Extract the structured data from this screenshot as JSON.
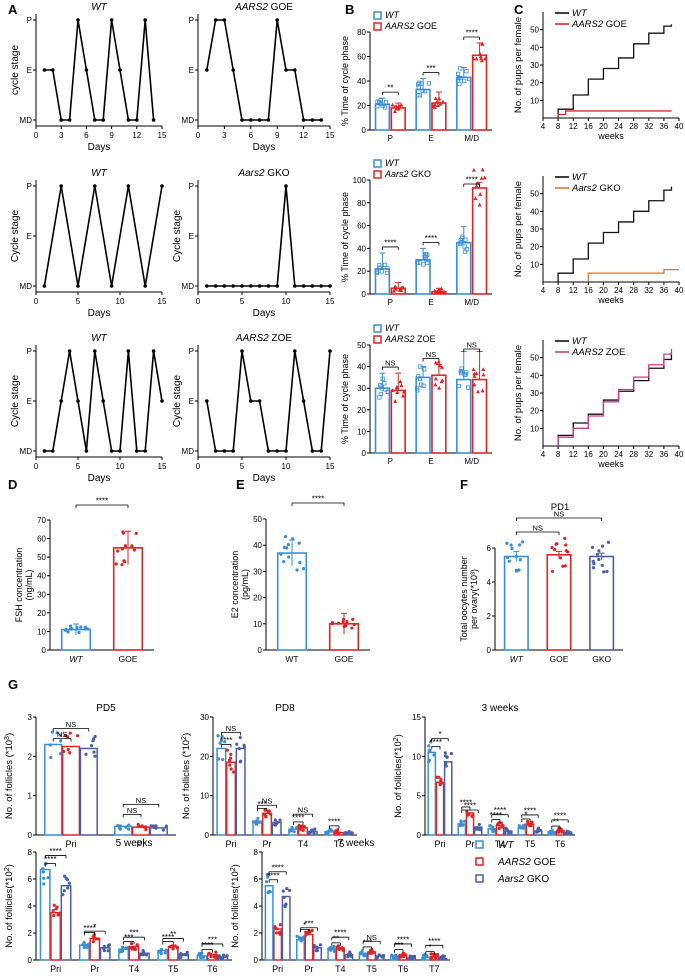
{
  "panels": {
    "A": "A",
    "B": "B",
    "C": "C",
    "D": "D",
    "E": "E",
    "F": "F",
    "G": "G"
  },
  "colors": {
    "wt": "#3a8fd6",
    "goe": "#e02424",
    "gko": "#4a5fa8",
    "zoe_line": "#d33a8c",
    "gko_line": "#e07a2e",
    "black": "#111111"
  },
  "chart_data": [
    {
      "id": "A1",
      "type": "line",
      "title": "WT",
      "title_italic": true,
      "ylabel": "cycle stage",
      "xlabel": "Days",
      "yticks": [
        "MD",
        "E",
        "P"
      ],
      "xticks": [
        0,
        3,
        6,
        9,
        12,
        15
      ],
      "xlim": [
        0,
        15
      ],
      "x": [
        1,
        2,
        3,
        4,
        5,
        6,
        7,
        8,
        9,
        10,
        11,
        12,
        13,
        14
      ],
      "y": [
        1,
        1,
        0,
        0,
        2,
        1,
        0,
        0,
        2,
        1,
        0,
        0,
        2,
        0
      ]
    },
    {
      "id": "A2",
      "type": "line",
      "title": "AARS2 GOE",
      "title_italic_part": "AARS2",
      "title_rest": " GOE",
      "ylabel": "",
      "xlabel": "Days",
      "yticks": [
        "MD",
        "E",
        "P"
      ],
      "xticks": [
        0,
        3,
        6,
        9,
        12,
        15
      ],
      "xlim": [
        0,
        15
      ],
      "x": [
        1,
        2,
        3,
        4,
        5,
        6,
        7,
        8,
        9,
        10,
        11,
        12,
        13,
        14
      ],
      "y": [
        1,
        2,
        2,
        1,
        0,
        0,
        0,
        0,
        2,
        1,
        1,
        0,
        0,
        0
      ]
    },
    {
      "id": "A3",
      "type": "line",
      "title": "WT",
      "title_italic": true,
      "ylabel": "Cycle stage",
      "xlabel": "Days",
      "yticks": [
        "MD",
        "E",
        "P"
      ],
      "xticks": [
        0,
        5,
        10,
        15
      ],
      "xlim": [
        0,
        15
      ],
      "x": [
        1,
        3,
        5,
        7,
        9,
        11,
        13,
        15
      ],
      "y": [
        0,
        2,
        0,
        2,
        0,
        2,
        0,
        2
      ]
    },
    {
      "id": "A4",
      "type": "line",
      "title": "Aars2 GKO",
      "title_italic_part": "Aars2",
      "title_rest": " GKO",
      "ylabel": "Cycle stage",
      "xlabel": "Days",
      "yticks": [
        "MD",
        "E",
        "P"
      ],
      "xticks": [
        0,
        5,
        10,
        15
      ],
      "xlim": [
        0,
        15
      ],
      "x": [
        1,
        2,
        3,
        4,
        5,
        6,
        7,
        8,
        9,
        10,
        11,
        12,
        13,
        14,
        15
      ],
      "y": [
        0,
        0,
        0,
        0,
        0,
        0,
        0,
        0,
        0,
        2,
        0,
        0,
        0,
        0,
        0
      ]
    },
    {
      "id": "A5",
      "type": "line",
      "title": "WT",
      "title_italic": true,
      "ylabel": "Cycle stage",
      "xlabel": "Days",
      "yticks": [
        "MD",
        "E",
        "P"
      ],
      "xticks": [
        0,
        5,
        10,
        15
      ],
      "xlim": [
        0,
        15
      ],
      "x": [
        1,
        2,
        3,
        4,
        5,
        6,
        7,
        8,
        9,
        10,
        11,
        12,
        13,
        14,
        15
      ],
      "y": [
        0,
        0,
        1,
        2,
        1,
        0,
        2,
        1,
        0,
        0,
        2,
        0,
        0,
        2,
        1
      ]
    },
    {
      "id": "A6",
      "type": "line",
      "title": "AARS2 ZOE",
      "title_italic_part": "AARS2",
      "title_rest": " ZOE",
      "ylabel": "Cycle stage",
      "xlabel": "Days",
      "yticks": [
        "MD",
        "E",
        "P"
      ],
      "xticks": [
        0,
        5,
        10,
        15
      ],
      "xlim": [
        0,
        15
      ],
      "x": [
        1,
        2,
        3,
        4,
        5,
        6,
        7,
        8,
        9,
        10,
        11,
        12,
        13,
        14,
        15
      ],
      "y": [
        1,
        0,
        0,
        0,
        2,
        1,
        1,
        0,
        0,
        0,
        2,
        1,
        0,
        0,
        2
      ]
    },
    {
      "id": "B1",
      "type": "bar",
      "ylabel": "% Time of cycle phase",
      "categories": [
        "P",
        "E",
        "M/D"
      ],
      "ylim": [
        0,
        80
      ],
      "yticks": [
        0,
        20,
        40,
        60,
        80
      ],
      "legend": [
        "WT",
        "AARS2 GOE"
      ],
      "legend_italic": [
        "WT",
        "AARS2"
      ],
      "series": [
        {
          "name": "WT",
          "values": [
            21,
            33,
            43
          ],
          "err": [
            5,
            9,
            8
          ]
        },
        {
          "name": "AARS2 GOE",
          "values": [
            18,
            22,
            61
          ],
          "err": [
            4,
            9,
            10
          ]
        }
      ],
      "sig": [
        "**",
        "***",
        "****"
      ]
    },
    {
      "id": "B2",
      "type": "bar",
      "ylabel": "% Time of cycle phase",
      "categories": [
        "P",
        "E",
        "M/D"
      ],
      "ylim": [
        0,
        100
      ],
      "yticks": [
        0,
        20,
        40,
        60,
        80,
        100
      ],
      "legend": [
        "WT",
        "Aars2 GKO"
      ],
      "legend_italic": [
        "WT",
        "Aars2"
      ],
      "series": [
        {
          "name": "WT",
          "values": [
            22,
            30,
            45
          ],
          "err": [
            14,
            10,
            14
          ]
        },
        {
          "name": "Aars2 GKO",
          "values": [
            5,
            2,
            93
          ],
          "err": [
            5,
            3,
            5
          ]
        }
      ],
      "sig": [
        "****",
        "****",
        "****"
      ]
    },
    {
      "id": "B3",
      "type": "bar",
      "ylabel": "% Time of cycle phase",
      "categories": [
        "P",
        "E",
        "M/D"
      ],
      "ylim": [
        0,
        50
      ],
      "yticks": [
        0,
        10,
        20,
        30,
        40,
        50
      ],
      "legend": [
        "WT",
        "AARS2 ZOE"
      ],
      "legend_italic": [
        "WT",
        "AARS2"
      ],
      "series": [
        {
          "name": "WT",
          "values": [
            30,
            35,
            34
          ],
          "err": [
            7,
            5,
            13
          ]
        },
        {
          "name": "AARS2 ZOE",
          "values": [
            29,
            36,
            34
          ],
          "err": [
            8,
            5,
            13
          ]
        }
      ],
      "sig": [
        "NS",
        "NS",
        "NS"
      ]
    },
    {
      "id": "C1",
      "type": "line",
      "ylabel": "No. of pups per female",
      "xlabel": "weeks",
      "xticks": [
        4,
        8,
        12,
        16,
        20,
        24,
        28,
        32,
        36,
        40
      ],
      "yticks": [
        10,
        20,
        30,
        40,
        50
      ],
      "xlim": [
        4,
        40
      ],
      "ylim": [
        0,
        60
      ],
      "legend": [
        "WT",
        "AARS2 GOE"
      ],
      "series": [
        {
          "name": "WT",
          "x": [
            8,
            12,
            16,
            20,
            24,
            28,
            32,
            36,
            38
          ],
          "y": [
            5,
            13,
            22,
            28,
            34,
            42,
            48,
            52,
            53
          ]
        },
        {
          "name": "AARS2 GOE",
          "x": [
            8,
            10,
            38
          ],
          "y": [
            2,
            4,
            4
          ]
        }
      ]
    },
    {
      "id": "C2",
      "type": "line",
      "ylabel": "No. of pups per female",
      "xlabel": "weeks",
      "xticks": [
        4,
        8,
        12,
        16,
        20,
        24,
        28,
        32,
        36,
        40
      ],
      "yticks": [
        10,
        20,
        30,
        40,
        50
      ],
      "xlim": [
        4,
        40
      ],
      "ylim": [
        0,
        60
      ],
      "legend": [
        "WT",
        "Aars2 GKO"
      ],
      "series": [
        {
          "name": "WT",
          "x": [
            8,
            12,
            16,
            20,
            24,
            28,
            32,
            36,
            38
          ],
          "y": [
            5,
            13,
            22,
            28,
            34,
            40,
            46,
            52,
            54
          ]
        },
        {
          "name": "Aars2 GKO",
          "x": [
            16,
            36,
            40
          ],
          "y": [
            5,
            7,
            7
          ]
        }
      ]
    },
    {
      "id": "C3",
      "type": "line",
      "ylabel": "No. of pups per female",
      "xlabel": "weeks",
      "xticks": [
        4,
        8,
        12,
        16,
        20,
        24,
        28,
        32,
        36,
        40
      ],
      "yticks": [
        10,
        20,
        30,
        40,
        50
      ],
      "xlim": [
        4,
        40
      ],
      "ylim": [
        0,
        60
      ],
      "legend": [
        "WT",
        "AARS2 ZOE"
      ],
      "series": [
        {
          "name": "WT",
          "x": [
            8,
            12,
            16,
            20,
            24,
            28,
            32,
            36,
            38
          ],
          "y": [
            6,
            13,
            18,
            26,
            31,
            37,
            44,
            49,
            53
          ]
        },
        {
          "name": "AARS2 ZOE",
          "x": [
            8,
            12,
            16,
            20,
            24,
            28,
            32,
            36,
            38
          ],
          "y": [
            5,
            10,
            17,
            25,
            32,
            39,
            46,
            52,
            55
          ]
        }
      ]
    },
    {
      "id": "D",
      "type": "bar",
      "ylabel": "FSH concentration (ng/mL)",
      "categories": [
        "WT",
        "GOE"
      ],
      "ylim": [
        0,
        70
      ],
      "yticks": [
        0,
        10,
        20,
        30,
        40,
        50,
        60,
        70
      ],
      "values": [
        11,
        55
      ],
      "err": [
        3,
        9
      ],
      "sig": "****"
    },
    {
      "id": "E",
      "type": "bar",
      "ylabel": "E2 concentration (pg/mL)",
      "categories": [
        "WT",
        "GOE"
      ],
      "ylim": [
        0,
        50
      ],
      "yticks": [
        0,
        10,
        20,
        30,
        40,
        50
      ],
      "values": [
        37,
        10
      ],
      "err": [
        5,
        4
      ],
      "sig": "****"
    },
    {
      "id": "F",
      "type": "bar",
      "title": "PD1",
      "ylabel": "Total oocytes number per ovary(*10^3)",
      "categories": [
        "WT",
        "GOE",
        "GKO"
      ],
      "ylim": [
        0,
        6
      ],
      "yticks": [
        0,
        2,
        4,
        6
      ],
      "values": [
        5.5,
        5.6,
        5.5
      ],
      "err": [
        0.3,
        0.2,
        0.2
      ],
      "sig": [
        "NS",
        "NS"
      ]
    },
    {
      "id": "G1",
      "type": "bar",
      "title": "PD5",
      "ylabel": "No. of follicles (*10^3)",
      "categories": [
        "Pri",
        "Pr"
      ],
      "ylim": [
        0,
        3
      ],
      "yticks": [
        0,
        1,
        2,
        3
      ],
      "series": [
        {
          "name": "WT",
          "values": [
            2.3,
            0.22
          ]
        },
        {
          "name": "AARS2 GOE",
          "values": [
            2.25,
            0.2
          ]
        },
        {
          "name": "Aars2 GKO",
          "values": [
            2.2,
            0.18
          ]
        }
      ],
      "sig": [
        "NS",
        "NS",
        "NS",
        "NS"
      ]
    },
    {
      "id": "G2",
      "type": "bar",
      "title": "PD8",
      "ylabel": "No. of follicles (*10^2)",
      "categories": [
        "Pri",
        "Pr",
        "T4",
        "T5"
      ],
      "ylim": [
        0,
        30
      ],
      "yticks": [
        0,
        10,
        20,
        30
      ],
      "series": [
        {
          "name": "WT",
          "values": [
            22,
            3.5,
            1.5,
            0.8
          ]
        },
        {
          "name": "AARS2 GOE",
          "values": [
            18.5,
            5.5,
            1.8,
            0.6
          ]
        },
        {
          "name": "Aars2 GKO",
          "values": [
            22,
            3.2,
            0.9,
            0.5
          ]
        }
      ],
      "sig": [
        "****",
        "NS",
        "***",
        "NS",
        "****",
        "NS",
        "****"
      ]
    },
    {
      "id": "G3",
      "type": "bar",
      "title": "3 weeks",
      "ylabel": "No. of follicles(*10^2)",
      "categories": [
        "Pri",
        "Pr",
        "T4",
        "T5",
        "T6"
      ],
      "ylim": [
        0,
        15
      ],
      "yticks": [
        0,
        5,
        10,
        15
      ],
      "series": [
        {
          "name": "WT",
          "values": [
            10.5,
            1.4,
            0.8,
            0.9,
            0.4
          ]
        },
        {
          "name": "AARS2 GOE",
          "values": [
            6.7,
            2.8,
            1.2,
            1.4,
            0.5
          ]
        },
        {
          "name": "Aars2 GKO",
          "values": [
            9.3,
            1.0,
            0.5,
            0.5,
            0.2
          ]
        }
      ],
      "sig": [
        "****",
        "*",
        "****",
        "****",
        "****",
        "****",
        "*",
        "****",
        "**",
        "****"
      ]
    },
    {
      "id": "G4",
      "type": "bar",
      "title": "5 weeks",
      "ylabel": "No. of follicles(*10^2)",
      "categories": [
        "Pri",
        "Pr",
        "T4",
        "T5",
        "T6"
      ],
      "ylim": [
        0,
        8
      ],
      "yticks": [
        0,
        2,
        4,
        6,
        8
      ],
      "series": [
        {
          "name": "WT",
          "values": [
            6.7,
            1.1,
            0.8,
            0.7,
            0.3
          ]
        },
        {
          "name": "AARS2 GOE",
          "values": [
            3.5,
            1.6,
            1.0,
            1.0,
            0.4
          ]
        },
        {
          "name": "Aars2 GKO",
          "values": [
            5.5,
            0.9,
            0.5,
            0.4,
            0.2
          ]
        }
      ],
      "sig": [
        "****",
        "****",
        "****",
        "*",
        "***",
        "***",
        "****",
        "**",
        "****",
        "***"
      ]
    },
    {
      "id": "G5",
      "type": "bar",
      "title": "7 weeks",
      "ylabel": "No. of follicles(*10^2)",
      "categories": [
        "Pri",
        "Pr",
        "T4",
        "T5",
        "T6",
        "T7"
      ],
      "ylim": [
        0,
        8
      ],
      "yticks": [
        0,
        2,
        4,
        6,
        8
      ],
      "series": [
        {
          "name": "WT",
          "values": [
            5.5,
            1.5,
            0.8,
            0.5,
            0.3,
            0.2
          ]
        },
        {
          "name": "AARS2 GOE",
          "values": [
            2.3,
            1.9,
            0.9,
            0.6,
            0.4,
            0.25
          ]
        },
        {
          "name": "Aars2 GKO",
          "values": [
            4.7,
            0.9,
            0.4,
            0.3,
            0.15,
            0.1
          ]
        }
      ],
      "sig": [
        "****",
        "****",
        "*",
        "***",
        "**",
        "****",
        "***",
        "NS",
        "***",
        "****",
        "*",
        "****"
      ]
    }
  ],
  "legend_G": [
    {
      "name": "WT",
      "italic": "WT",
      "rest": ""
    },
    {
      "name": "AARS2 GOE",
      "italic": "AARS2",
      "rest": " GOE"
    },
    {
      "name": "Aars2 GKO",
      "italic": "Aars2",
      "rest": " GKO"
    }
  ]
}
